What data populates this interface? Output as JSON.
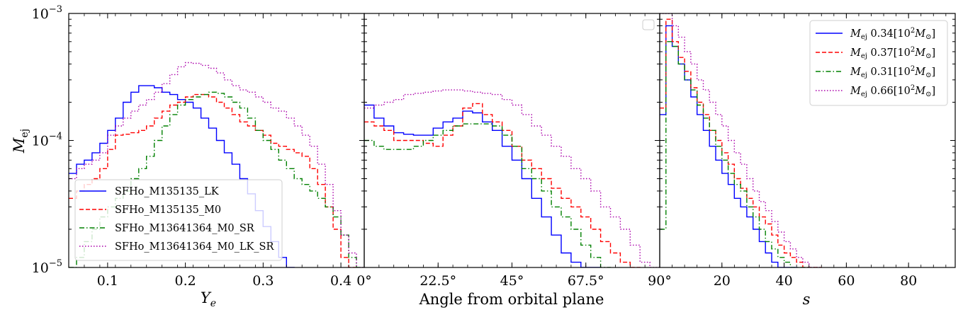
{
  "chart_data": [
    {
      "type": "line",
      "drawstyle": "steps",
      "xlabel": "Y_e",
      "ylabel": "M_ej",
      "xlim": [
        0.05,
        0.43
      ],
      "ylim": [
        1e-05,
        0.001
      ],
      "yscale": "log",
      "xticks": [
        0.1,
        0.2,
        0.3,
        0.4
      ],
      "xtick_labels": [
        "0.1",
        "0.2",
        "0.3",
        "0.4"
      ],
      "ytick_labels": [
        "10^-5",
        "10^-4",
        "10^-3"
      ],
      "legend_loc": "lower-left",
      "series": [
        {
          "name": "SFHo_M135135_LK",
          "color": "#0000ff",
          "dash": "solid",
          "x": [
            0.05,
            0.06,
            0.07,
            0.08,
            0.09,
            0.1,
            0.11,
            0.12,
            0.13,
            0.14,
            0.15,
            0.16,
            0.17,
            0.18,
            0.19,
            0.2,
            0.21,
            0.22,
            0.23,
            0.24,
            0.25,
            0.26,
            0.27,
            0.28,
            0.29,
            0.3,
            0.31,
            0.32,
            0.33
          ],
          "y": [
            5.5e-05,
            6.5e-05,
            7e-05,
            8e-05,
            9.5e-05,
            0.00012,
            0.00015,
            0.0002,
            0.00024,
            0.00027,
            0.00027,
            0.00026,
            0.00024,
            0.00023,
            0.00021,
            0.0002,
            0.00018,
            0.00015,
            0.000125,
            0.0001,
            8e-05,
            6.5e-05,
            5e-05,
            3.8e-05,
            2.8e-05,
            2.1e-05,
            1.6e-05,
            1.2e-05,
            1e-05
          ]
        },
        {
          "name": "SFHo_M135135_M0",
          "color": "#ff0000",
          "dash": "dashed",
          "x": [
            0.05,
            0.06,
            0.07,
            0.08,
            0.09,
            0.1,
            0.11,
            0.12,
            0.13,
            0.14,
            0.15,
            0.16,
            0.17,
            0.18,
            0.19,
            0.2,
            0.21,
            0.22,
            0.23,
            0.24,
            0.25,
            0.26,
            0.27,
            0.28,
            0.29,
            0.3,
            0.31,
            0.32,
            0.33,
            0.34,
            0.35,
            0.36,
            0.37,
            0.38,
            0.39,
            0.4,
            0.41
          ],
          "y": [
            3.5e-05,
            4e-05,
            4.5e-05,
            5e-05,
            6e-05,
            8.5e-05,
            0.00011,
            0.000112,
            0.000115,
            0.00012,
            0.00013,
            0.00015,
            0.00017,
            0.00019,
            0.0002,
            0.00022,
            0.00023,
            0.00023,
            0.00022,
            0.0002,
            0.00018,
            0.00016,
            0.00014,
            0.00013,
            0.00012,
            0.00011,
            9.5e-05,
            9e-05,
            8.5e-05,
            8e-05,
            7.5e-05,
            6e-05,
            4.5e-05,
            3e-05,
            2e-05,
            1.2e-05,
            1e-05
          ]
        },
        {
          "name": "SFHo_M13641364_M0_SR",
          "color": "#008000",
          "dash": "dashdot",
          "x": [
            0.05,
            0.06,
            0.07,
            0.08,
            0.09,
            0.1,
            0.11,
            0.12,
            0.13,
            0.14,
            0.15,
            0.16,
            0.17,
            0.18,
            0.19,
            0.2,
            0.21,
            0.22,
            0.23,
            0.24,
            0.25,
            0.26,
            0.27,
            0.28,
            0.29,
            0.3,
            0.31,
            0.32,
            0.33,
            0.34,
            0.35,
            0.36,
            0.37,
            0.38,
            0.39,
            0.4,
            0.41,
            0.42
          ],
          "y": [
            1e-05,
            1.2e-05,
            1.6e-05,
            2e-05,
            2.5e-05,
            3e-05,
            3.5e-05,
            4e-05,
            5e-05,
            6e-05,
            7.5e-05,
            0.0001,
            0.00013,
            0.00016,
            0.00019,
            0.00021,
            0.00022,
            0.00023,
            0.00024,
            0.000235,
            0.00022,
            0.0002,
            0.00018,
            0.00015,
            0.00012,
            0.0001,
            8.5e-05,
            7e-05,
            6e-05,
            5e-05,
            4.5e-05,
            4e-05,
            3.5e-05,
            3e-05,
            2.5e-05,
            1.8e-05,
            1.2e-05,
            1e-05
          ]
        },
        {
          "name": "SFHo_M13641364_M0_LK_SR",
          "color": "#aa00aa",
          "dash": "dotted",
          "x": [
            0.05,
            0.06,
            0.07,
            0.08,
            0.09,
            0.1,
            0.11,
            0.12,
            0.13,
            0.14,
            0.15,
            0.16,
            0.17,
            0.18,
            0.19,
            0.2,
            0.21,
            0.22,
            0.23,
            0.24,
            0.25,
            0.26,
            0.27,
            0.28,
            0.29,
            0.3,
            0.31,
            0.32,
            0.33,
            0.34,
            0.35,
            0.36,
            0.37,
            0.38,
            0.39,
            0.4,
            0.41,
            0.42
          ],
          "y": [
            5e-05,
            6e-05,
            6.5e-05,
            7e-05,
            8e-05,
            0.00011,
            0.00013,
            0.00015,
            0.00017,
            0.00019,
            0.00021,
            0.00024,
            0.00028,
            0.00033,
            0.00038,
            0.00041,
            0.000405,
            0.00039,
            0.00037,
            0.00034,
            0.0003,
            0.00027,
            0.00025,
            0.00024,
            0.00022,
            0.0002,
            0.00018,
            0.00017,
            0.00015,
            0.00013,
            0.00011,
            9e-05,
            6.5e-05,
            4.5e-05,
            2.8e-05,
            1.8e-05,
            1.3e-05,
            1e-05
          ]
        }
      ]
    },
    {
      "type": "line",
      "drawstyle": "steps",
      "xlabel": "Angle from orbital plane",
      "xlim": [
        0,
        90
      ],
      "ylim": [
        1e-05,
        0.001
      ],
      "yscale": "log",
      "xticks": [
        0,
        22.5,
        45,
        67.5,
        90
      ],
      "xtick_labels": [
        "0°",
        "22.5°",
        "45°",
        "67.5°",
        "90°"
      ],
      "series": [
        {
          "color": "#0000ff",
          "dash": "solid",
          "x": [
            0,
            3,
            6,
            9,
            12,
            15,
            18,
            21,
            24,
            27,
            30,
            33,
            36,
            39,
            42,
            45,
            48,
            51,
            54,
            57,
            60,
            63,
            66,
            69
          ],
          "y": [
            0.00019,
            0.00015,
            0.00013,
            0.000115,
            0.000112,
            0.00011,
            0.00011,
            0.000125,
            0.00014,
            0.00015,
            0.00017,
            0.000165,
            0.00014,
            0.00012,
            9e-05,
            7e-05,
            5e-05,
            3.5e-05,
            2.5e-05,
            1.8e-05,
            1.3e-05,
            1.1e-05,
            1e-05,
            1e-05
          ]
        },
        {
          "color": "#ff0000",
          "dash": "dashed",
          "x": [
            0,
            3,
            6,
            9,
            12,
            15,
            18,
            21,
            24,
            27,
            30,
            33,
            36,
            39,
            42,
            45,
            48,
            51,
            54,
            57,
            60,
            63,
            66,
            69,
            72,
            75,
            78,
            81
          ],
          "y": [
            0.00014,
            0.00013,
            0.00012,
            0.0001,
            0.0001,
            0.0001,
            9.5e-05,
            9e-05,
            0.00011,
            0.00013,
            0.00018,
            0.000195,
            0.00016,
            0.00014,
            0.00012,
            9e-05,
            7e-05,
            6e-05,
            5e-05,
            4.2e-05,
            3.5e-05,
            3e-05,
            2.5e-05,
            2e-05,
            1.6e-05,
            1.3e-05,
            1.1e-05,
            1e-05
          ]
        },
        {
          "color": "#008000",
          "dash": "dashdot",
          "x": [
            0,
            3,
            6,
            9,
            12,
            15,
            18,
            21,
            24,
            27,
            30,
            33,
            36,
            39,
            42,
            45,
            48,
            51,
            54,
            57,
            60,
            63,
            66,
            69,
            72
          ],
          "y": [
            0.0001,
            9e-05,
            8.5e-05,
            8.5e-05,
            8.5e-05,
            9e-05,
            0.0001,
            0.00011,
            0.00012,
            0.00013,
            0.000135,
            0.000135,
            0.000135,
            0.00013,
            0.00011,
            9e-05,
            6e-05,
            5e-05,
            4e-05,
            3e-05,
            2.5e-05,
            2e-05,
            1.5e-05,
            1.2e-05,
            1e-05
          ]
        },
        {
          "color": "#aa00aa",
          "dash": "dotted",
          "x": [
            0,
            3,
            6,
            9,
            12,
            15,
            18,
            21,
            24,
            27,
            30,
            33,
            36,
            39,
            42,
            45,
            48,
            51,
            54,
            57,
            60,
            63,
            66,
            69,
            72,
            75,
            78,
            81,
            84,
            87
          ],
          "y": [
            0.00018,
            0.00019,
            0.0002,
            0.00021,
            0.00023,
            0.000235,
            0.00024,
            0.000245,
            0.00025,
            0.00025,
            0.000245,
            0.00024,
            0.000235,
            0.00023,
            0.00021,
            0.00019,
            0.00016,
            0.00013,
            0.00011,
            9e-05,
            7.5e-05,
            6e-05,
            5e-05,
            4e-05,
            3e-05,
            2.5e-05,
            2e-05,
            1.5e-05,
            1.1e-05,
            1e-05
          ]
        }
      ]
    },
    {
      "type": "line",
      "drawstyle": "steps",
      "xlabel": "s",
      "xlim": [
        0,
        95
      ],
      "ylim": [
        1e-05,
        0.001
      ],
      "yscale": "log",
      "xticks": [
        20,
        40,
        60,
        80
      ],
      "xtick_labels": [
        "20",
        "40",
        "60",
        "80"
      ],
      "legend_loc": "upper-right",
      "series": [
        {
          "name": "M_ej 0.34[10^2 M_sun]",
          "color": "#0000ff",
          "dash": "solid",
          "x": [
            0,
            2,
            4,
            6,
            8,
            10,
            12,
            14,
            16,
            18,
            20,
            22,
            24,
            26,
            28,
            30,
            32,
            34,
            36,
            38,
            40,
            42
          ],
          "y": [
            0.00016,
            0.0008,
            0.00055,
            0.0004,
            0.0003,
            0.00022,
            0.00016,
            0.00012,
            9e-05,
            7e-05,
            5.5e-05,
            4.5e-05,
            3.5e-05,
            3e-05,
            2.5e-05,
            2e-05,
            1.6e-05,
            1.3e-05,
            1.1e-05,
            1e-05,
            1e-05,
            1e-05
          ]
        },
        {
          "name": "M_ej 0.37[10^2 M_sun]",
          "color": "#ff0000",
          "dash": "dashed",
          "x": [
            0,
            2,
            4,
            6,
            8,
            10,
            12,
            14,
            16,
            18,
            20,
            22,
            24,
            26,
            28,
            30,
            32,
            34,
            36,
            38,
            40,
            42,
            44,
            46,
            48,
            50
          ],
          "y": [
            0.00018,
            0.0009,
            0.0006,
            0.00045,
            0.00035,
            0.00026,
            0.0002,
            0.00016,
            0.00012,
            0.0001,
            8e-05,
            6.5e-05,
            5e-05,
            4.2e-05,
            3.5e-05,
            3e-05,
            2.5e-05,
            2.2e-05,
            1.8e-05,
            1.5e-05,
            1.3e-05,
            1.2e-05,
            1.1e-05,
            1e-05,
            1e-05,
            1e-05
          ]
        },
        {
          "name": "M_ej 0.31[10^2 M_sun]",
          "color": "#008000",
          "dash": "dashdot",
          "x": [
            0,
            2,
            4,
            6,
            8,
            10,
            12,
            14,
            16,
            18,
            20,
            22,
            24,
            26,
            28,
            30,
            32,
            34,
            36,
            38,
            40,
            42,
            44,
            46
          ],
          "y": [
            2e-05,
            0.0006,
            0.00055,
            0.0004,
            0.0003,
            0.00025,
            0.00019,
            0.00015,
            0.00012,
            9e-05,
            7e-05,
            5.5e-05,
            4.5e-05,
            4e-05,
            3e-05,
            2.5e-05,
            2e-05,
            1.6e-05,
            1.4e-05,
            1.2e-05,
            1.1e-05,
            1e-05,
            1e-05,
            1e-05
          ]
        },
        {
          "name": "M_ej 0.66[10^2 M_sun]",
          "color": "#aa00aa",
          "dash": "dotted",
          "x": [
            0,
            2,
            4,
            6,
            8,
            10,
            12,
            14,
            16,
            18,
            20,
            22,
            24,
            26,
            28,
            30,
            32,
            34,
            36,
            38,
            40,
            42,
            44,
            46,
            48,
            50
          ],
          "y": [
            0.001,
            0.001,
            0.0008,
            0.00065,
            0.0005,
            0.0004,
            0.0003,
            0.00025,
            0.0002,
            0.00016,
            0.00013,
            0.0001,
            8e-05,
            6.5e-05,
            5e-05,
            4e-05,
            3.3e-05,
            2.8e-05,
            2.3e-05,
            1.9e-05,
            1.6e-05,
            1.4e-05,
            1.2e-05,
            1.1e-05,
            1e-05,
            1e-05
          ]
        }
      ]
    }
  ],
  "labels": {
    "ylabel_main": "M",
    "ylabel_sub": "ej",
    "xlabel_ye_main": "Y",
    "xlabel_ye_sub": "e",
    "xlabel_angle": "Angle from orbital plane",
    "xlabel_s": "s",
    "ytick_base": "10",
    "ytick_exps": [
      "−3",
      "−4",
      "−5"
    ]
  },
  "legend_left": [
    "SFHo_M135135_LK",
    "SFHo_M135135_M0",
    "SFHo_M13641364_M0_SR",
    "SFHo_M13641364_M0_LK_SR"
  ],
  "legend_right": [
    {
      "prefix": "M",
      "sub": "ej",
      "value": " 0.34[10",
      "sup": "2",
      "unit": "M",
      "unit_sub": "⊙",
      "close": "]"
    },
    {
      "prefix": "M",
      "sub": "ej",
      "value": " 0.37[10",
      "sup": "2",
      "unit": "M",
      "unit_sub": "⊙",
      "close": "]"
    },
    {
      "prefix": "M",
      "sub": "ej",
      "value": " 0.31[10",
      "sup": "2",
      "unit": "M",
      "unit_sub": "⊙",
      "close": "]"
    },
    {
      "prefix": "M",
      "sub": "ej",
      "value": " 0.66[10",
      "sup": "2",
      "unit": "M",
      "unit_sub": "⊙",
      "close": "]"
    }
  ]
}
